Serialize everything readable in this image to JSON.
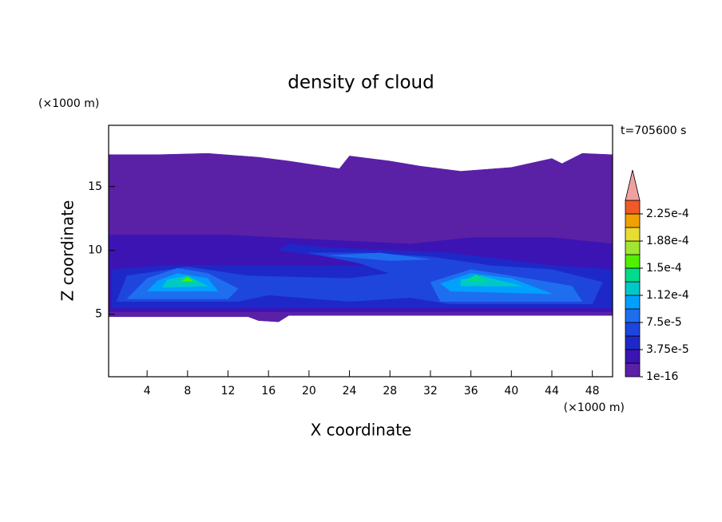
{
  "chart_data": {
    "type": "contour",
    "title": "density of cloud",
    "y_unit": "(×1000 m)",
    "x_unit": "(×1000 m)",
    "time_label": "t=705600 s",
    "xlabel": "X coordinate",
    "ylabel": "Z coordinate",
    "xlim": [
      0.2,
      50
    ],
    "ylim": [
      0.1,
      19.8
    ],
    "xticks": [
      4,
      8,
      12,
      16,
      20,
      24,
      28,
      32,
      36,
      40,
      44,
      48
    ],
    "yticks": [
      5,
      10,
      15
    ],
    "colorbar": {
      "levels": [
        1e-16,
        1.875e-05,
        3.75e-05,
        5.625e-05,
        7.5e-05,
        9.375e-05,
        0.0001125,
        0.00013125,
        0.00015,
        0.00016875,
        0.0001875,
        0.00020625,
        0.000225
      ],
      "colors": [
        "#5a20a6",
        "#3c14b4",
        "#1e28c8",
        "#1e46dc",
        "#1e6ef0",
        "#00a0ff",
        "#00c8c8",
        "#00dc8c",
        "#50f000",
        "#a0e632",
        "#e6dc32",
        "#f0a000",
        "#f05a28"
      ],
      "over_color": "#f0a0a0",
      "ticks": [
        {
          "value": 1e-16,
          "label": "1e-16"
        },
        {
          "value": 3.75e-05,
          "label": "3.75e-5"
        },
        {
          "value": 7.5e-05,
          "label": "7.5e-5"
        },
        {
          "value": 0.0001125,
          "label": "1.12e-4"
        },
        {
          "value": 0.00015,
          "label": "1.5e-4"
        },
        {
          "value": 0.0001875,
          "label": "1.88e-4"
        },
        {
          "value": 0.000225,
          "label": "2.25e-4"
        }
      ]
    },
    "regions": [
      {
        "value": 1e-16,
        "points": [
          [
            0.2,
            4.8
          ],
          [
            14,
            4.8
          ],
          [
            15,
            4.5
          ],
          [
            17,
            4.4
          ],
          [
            18,
            4.9
          ],
          [
            50,
            4.9
          ],
          [
            50,
            17.5
          ],
          [
            47,
            17.6
          ],
          [
            45,
            16.8
          ],
          [
            44,
            17.2
          ],
          [
            40,
            16.5
          ],
          [
            35,
            16.2
          ],
          [
            31,
            16.6
          ],
          [
            28,
            17
          ],
          [
            24,
            17.4
          ],
          [
            23,
            16.4
          ],
          [
            18,
            17
          ],
          [
            15,
            17.3
          ],
          [
            10,
            17.6
          ],
          [
            5,
            17.5
          ],
          [
            0.2,
            17.5
          ]
        ]
      },
      {
        "value": 1.875e-05,
        "points": [
          [
            0.2,
            5.2
          ],
          [
            50,
            5.2
          ],
          [
            50,
            10.5
          ],
          [
            44,
            11
          ],
          [
            36,
            11
          ],
          [
            30,
            10.5
          ],
          [
            22,
            10.8
          ],
          [
            12,
            11.2
          ],
          [
            0.2,
            11.2
          ]
        ]
      },
      {
        "value": 3.75e-05,
        "points": [
          [
            0.5,
            5.5
          ],
          [
            50,
            5.5
          ],
          [
            50,
            8.5
          ],
          [
            44,
            8.8
          ],
          [
            40,
            9.2
          ],
          [
            34,
            9.8
          ],
          [
            28,
            10
          ],
          [
            22,
            10.2
          ],
          [
            18,
            10.5
          ],
          [
            17,
            10
          ],
          [
            22,
            9.5
          ],
          [
            26,
            8.8
          ],
          [
            12,
            8.8
          ],
          [
            6,
            8.8
          ],
          [
            0.5,
            8.5
          ]
        ]
      },
      {
        "value": 5.625e-05,
        "points": [
          [
            1,
            6
          ],
          [
            13,
            6
          ],
          [
            16,
            6.5
          ],
          [
            24,
            6
          ],
          [
            30,
            6.3
          ],
          [
            34,
            5.8
          ],
          [
            48,
            5.8
          ],
          [
            49,
            7.5
          ],
          [
            44,
            8.5
          ],
          [
            38,
            8.8
          ],
          [
            32,
            9.5
          ],
          [
            26,
            9.8
          ],
          [
            20,
            9.8
          ],
          [
            25,
            9
          ],
          [
            28,
            8.2
          ],
          [
            24,
            7.8
          ],
          [
            14,
            8
          ],
          [
            8,
            8.7
          ],
          [
            2,
            8
          ]
        ]
      },
      {
        "value": 7.5e-05,
        "points": [
          [
            2,
            6.2
          ],
          [
            12,
            6.2
          ],
          [
            13,
            7
          ],
          [
            10,
            8.2
          ],
          [
            7,
            8.6
          ],
          [
            4,
            7.8
          ]
        ]
      },
      {
        "value": 7.5e-05,
        "points": [
          [
            33,
            6
          ],
          [
            47,
            6
          ],
          [
            46,
            7.2
          ],
          [
            40,
            8
          ],
          [
            36,
            8.5
          ],
          [
            32,
            7.5
          ]
        ]
      },
      {
        "value": 7.5e-05,
        "points": [
          [
            22,
            9.6
          ],
          [
            28,
            9.2
          ],
          [
            32,
            9.3
          ],
          [
            27,
            9.8
          ]
        ]
      },
      {
        "value": 9.375e-05,
        "points": [
          [
            4,
            6.8
          ],
          [
            11,
            6.8
          ],
          [
            10,
            7.8
          ],
          [
            7,
            8.2
          ],
          [
            5,
            7.6
          ]
        ]
      },
      {
        "value": 9.375e-05,
        "points": [
          [
            34,
            6.8
          ],
          [
            44,
            6.6
          ],
          [
            40,
            7.8
          ],
          [
            36,
            8.2
          ],
          [
            33,
            7.4
          ]
        ]
      },
      {
        "value": 0.0001125,
        "points": [
          [
            5.5,
            7.1
          ],
          [
            10,
            7.2
          ],
          [
            8,
            8
          ],
          [
            6,
            7.7
          ]
        ]
      },
      {
        "value": 0.0001125,
        "points": [
          [
            35,
            7.2
          ],
          [
            41,
            7.2
          ],
          [
            37,
            8
          ],
          [
            35,
            7.7
          ]
        ]
      },
      {
        "value": 0.00013125,
        "points": [
          [
            7,
            7.5
          ],
          [
            9,
            7.5
          ],
          [
            8,
            8
          ]
        ]
      },
      {
        "value": 0.00013125,
        "points": [
          [
            35.5,
            7.6
          ],
          [
            37.5,
            7.6
          ],
          [
            36.5,
            8.1
          ]
        ]
      },
      {
        "value": 0.00015,
        "points": [
          [
            7.5,
            7.6
          ],
          [
            8.5,
            7.6
          ],
          [
            8,
            7.9
          ]
        ]
      }
    ]
  }
}
